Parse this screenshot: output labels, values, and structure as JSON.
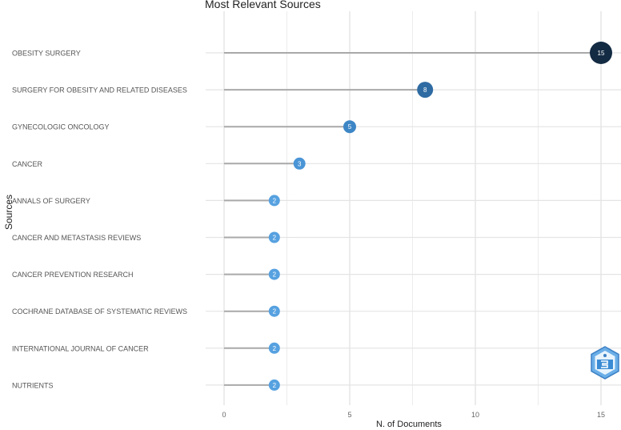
{
  "chart_data": {
    "type": "lollipop",
    "title": "Most Relevant Sources",
    "xlabel": "N. of Documents",
    "ylabel": "Sources",
    "xlim": [
      0,
      15
    ],
    "xticks": [
      0,
      5,
      10,
      15
    ],
    "grid": true,
    "categories": [
      "OBESITY SURGERY",
      "SURGERY FOR OBESITY AND RELATED DISEASES",
      "GYNECOLOGIC ONCOLOGY",
      "CANCER",
      "ANNALS OF SURGERY",
      "CANCER AND METASTASIS REVIEWS",
      "CANCER PREVENTION RESEARCH",
      "COCHRANE DATABASE OF SYSTEMATIC REVIEWS",
      "INTERNATIONAL JOURNAL OF CANCER",
      "NUTRIENTS"
    ],
    "values": [
      15,
      8,
      5,
      3,
      2,
      2,
      2,
      2,
      2,
      2
    ],
    "point_colors": [
      "#132b43",
      "#2f6ba3",
      "#3d86c6",
      "#4a95d6",
      "#56a1e0",
      "#56a1e0",
      "#56a1e0",
      "#56a1e0",
      "#56a1e0",
      "#56a1e0"
    ],
    "legend": null
  },
  "labels": {
    "title": "Most Relevant Sources",
    "xlabel": "N. of Documents",
    "ylabel": "Sources",
    "xticks": [
      "0",
      "5",
      "10",
      "15"
    ]
  },
  "watermark": {
    "icon": "hexagon-logo-icon"
  }
}
